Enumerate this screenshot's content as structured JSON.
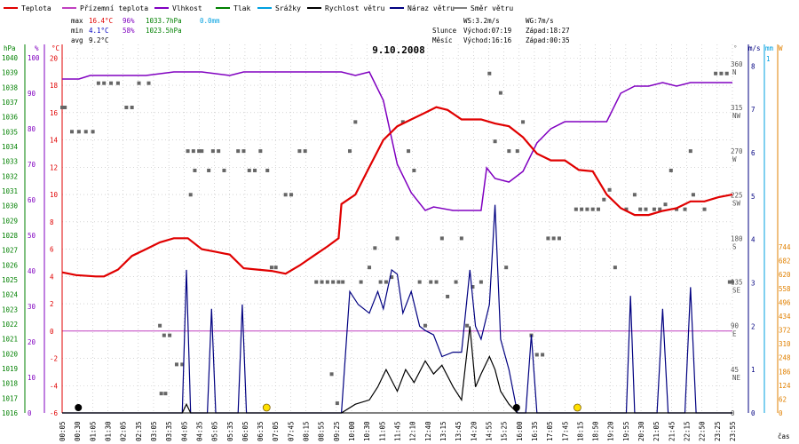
{
  "chart_data": {
    "type": "line",
    "title": "9.10.2008",
    "xlabel": "čas",
    "legend": [
      {
        "name": "Teplota",
        "color": "#e00000"
      },
      {
        "name": "Přízemní teplota",
        "color": "#c040c0"
      },
      {
        "name": "Vlhkost",
        "color": "#8000c0"
      },
      {
        "name": "Tlak",
        "color": "#008000"
      },
      {
        "name": "Srážky",
        "color": "#00a0e0"
      },
      {
        "name": "Rychlost větru",
        "color": "#000000"
      },
      {
        "name": "Náraz větru",
        "color": "#000080"
      },
      {
        "name": "Směr větru",
        "color": "#808080"
      }
    ],
    "stats": {
      "max_label": "max",
      "min_label": "min",
      "avg_label": "avg",
      "max_temp": "16.4°C",
      "max_hum": "96%",
      "max_press": "1033.7hPa",
      "max_rain": "0.0mm",
      "min_temp": "4.1°C",
      "min_hum": "58%",
      "min_press": "1023.5hPa",
      "avg_temp": "9.2°C"
    },
    "info": {
      "ws": "WS:3.2m/s",
      "wg": "WG:7m/s",
      "sun_label": "Slunce",
      "sun_rise": "Východ:07:19",
      "sun_set": "Západ:18:27",
      "moon_label": "Měsíc",
      "moon_rise": "Východ:16:16",
      "moon_set": "Západ:00:35"
    },
    "axis_units": {
      "hpa": "hPa",
      "pct": "%",
      "degc": "°C",
      "dir": "°",
      "ms": "m/s",
      "mm": "mm",
      "w": "W"
    },
    "x_ticks": [
      "00:05",
      "00:30",
      "01:05",
      "01:30",
      "02:05",
      "02:35",
      "03:05",
      "03:35",
      "04:05",
      "04:35",
      "05:05",
      "05:35",
      "06:05",
      "06:35",
      "07:05",
      "07:45",
      "08:15",
      "08:55",
      "09:25",
      "10:00",
      "10:30",
      "11:05",
      "11:45",
      "12:10",
      "12:40",
      "13:15",
      "13:45",
      "14:20",
      "14:55",
      "15:25",
      "16:00",
      "16:35",
      "17:05",
      "17:45",
      "18:15",
      "18:50",
      "19:20",
      "19:55",
      "20:30",
      "21:05",
      "21:45",
      "22:15",
      "22:50",
      "23:25",
      "23:55"
    ],
    "pressure_ticks": [
      "1040",
      "1039",
      "1038",
      "1037",
      "1036",
      "1035",
      "1034",
      "1033",
      "1032",
      "1031",
      "1030",
      "1029",
      "1028",
      "1027",
      "1026",
      "1025",
      "1024",
      "1023",
      "1022",
      "1021",
      "1020",
      "1019",
      "1018",
      "1017",
      "1016"
    ],
    "humidity_ticks": [
      "100",
      "90",
      "80",
      "70",
      "60",
      "50",
      "40",
      "30",
      "20",
      "10",
      "0"
    ],
    "temp_ticks": [
      "20",
      "18",
      "16",
      "14",
      "12",
      "10",
      "8",
      "6",
      "4",
      "2",
      "0",
      "-2",
      "-4",
      "-6"
    ],
    "dir_ticks": [
      {
        "deg": "360",
        "dir": "N"
      },
      {
        "deg": "315",
        "dir": "NW"
      },
      {
        "deg": "270",
        "dir": "W"
      },
      {
        "deg": "225",
        "dir": "SW"
      },
      {
        "deg": "180",
        "dir": "S"
      },
      {
        "deg": "135",
        "dir": "SE"
      },
      {
        "deg": "90",
        "dir": "E"
      },
      {
        "deg": "45",
        "dir": "NE"
      },
      {
        "deg": "0",
        "dir": ""
      }
    ],
    "ms_ticks": [
      "8",
      "7",
      "6",
      "5",
      "4",
      "3",
      "2",
      "1",
      "0"
    ],
    "mm_ticks": [
      "1"
    ],
    "w_ticks": [
      "744",
      "682",
      "620",
      "558",
      "496",
      "434",
      "372",
      "310",
      "248",
      "186",
      "124",
      "62",
      "0"
    ],
    "x_range_h": [
      0,
      24
    ],
    "temp_range": [
      -6,
      21
    ],
    "ms_range": [
      0,
      8.5
    ],
    "dir_range": [
      0,
      380
    ],
    "series": [
      {
        "name": "Teplota",
        "unit": "°C",
        "points": [
          [
            0,
            4.3
          ],
          [
            0.5,
            4.1
          ],
          [
            1.2,
            4.0
          ],
          [
            1.5,
            4.0
          ],
          [
            2,
            4.5
          ],
          [
            2.5,
            5.5
          ],
          [
            3,
            6.0
          ],
          [
            3.5,
            6.5
          ],
          [
            4,
            6.8
          ],
          [
            4.5,
            6.8
          ],
          [
            5,
            6.0
          ],
          [
            5.5,
            5.8
          ],
          [
            6,
            5.6
          ],
          [
            6.5,
            4.6
          ],
          [
            7,
            4.5
          ],
          [
            7.5,
            4.4
          ],
          [
            8,
            4.2
          ],
          [
            8.5,
            4.8
          ],
          [
            9,
            5.5
          ],
          [
            9.5,
            6.2
          ],
          [
            9.9,
            6.8
          ],
          [
            10,
            9.3
          ],
          [
            10.5,
            10.0
          ],
          [
            11,
            12.0
          ],
          [
            11.5,
            14.0
          ],
          [
            12,
            15.0
          ],
          [
            12.5,
            15.5
          ],
          [
            13,
            16.0
          ],
          [
            13.4,
            16.4
          ],
          [
            13.8,
            16.2
          ],
          [
            14.3,
            15.5
          ],
          [
            15,
            15.5
          ],
          [
            15.5,
            15.2
          ],
          [
            16,
            15.0
          ],
          [
            16.5,
            14.2
          ],
          [
            17,
            13.0
          ],
          [
            17.5,
            12.5
          ],
          [
            18,
            12.5
          ],
          [
            18.5,
            11.8
          ],
          [
            19,
            11.7
          ],
          [
            19.5,
            10.0
          ],
          [
            20,
            9.0
          ],
          [
            20.5,
            8.5
          ],
          [
            21,
            8.5
          ],
          [
            21.5,
            8.8
          ],
          [
            22,
            9.0
          ],
          [
            22.5,
            9.5
          ],
          [
            23,
            9.5
          ],
          [
            23.5,
            9.8
          ],
          [
            24,
            10.0
          ]
        ]
      },
      {
        "name": "Vlhkost",
        "unit": "%",
        "points": [
          [
            0,
            94
          ],
          [
            0.6,
            94
          ],
          [
            1,
            95
          ],
          [
            2,
            95
          ],
          [
            3,
            95
          ],
          [
            4,
            96
          ],
          [
            5,
            96
          ],
          [
            6,
            95
          ],
          [
            6.5,
            96
          ],
          [
            7,
            96
          ],
          [
            8,
            96
          ],
          [
            9,
            96
          ],
          [
            10,
            96
          ],
          [
            10.5,
            95
          ],
          [
            11,
            96
          ],
          [
            11.5,
            88
          ],
          [
            12,
            70
          ],
          [
            12.5,
            62
          ],
          [
            13,
            57
          ],
          [
            13.3,
            58
          ],
          [
            14,
            57
          ],
          [
            14.5,
            57
          ],
          [
            15,
            57
          ],
          [
            15.2,
            69
          ],
          [
            15.5,
            66
          ],
          [
            16,
            65
          ],
          [
            16.5,
            68
          ],
          [
            17,
            76
          ],
          [
            17.5,
            80
          ],
          [
            18,
            82
          ],
          [
            18.5,
            82
          ],
          [
            19,
            82
          ],
          [
            19.5,
            82
          ],
          [
            20,
            90
          ],
          [
            20.5,
            92
          ],
          [
            21,
            92
          ],
          [
            21.5,
            93
          ],
          [
            22,
            92
          ],
          [
            22.5,
            93
          ],
          [
            23,
            93
          ],
          [
            24,
            93
          ]
        ]
      },
      {
        "name": "Náraz větru",
        "unit": "m/s",
        "points": [
          [
            0,
            0
          ],
          [
            4,
            0
          ],
          [
            4.3,
            0
          ],
          [
            4.45,
            3.3
          ],
          [
            4.6,
            0
          ],
          [
            5.2,
            0
          ],
          [
            5.35,
            2.4
          ],
          [
            5.5,
            0
          ],
          [
            6,
            0
          ],
          [
            6.3,
            0
          ],
          [
            6.45,
            2.5
          ],
          [
            6.6,
            0
          ],
          [
            10,
            0
          ],
          [
            10.3,
            2.8
          ],
          [
            10.6,
            2.5
          ],
          [
            11,
            2.3
          ],
          [
            11.3,
            2.8
          ],
          [
            11.5,
            2.4
          ],
          [
            11.8,
            3.3
          ],
          [
            12,
            3.2
          ],
          [
            12.2,
            2.3
          ],
          [
            12.5,
            2.8
          ],
          [
            12.8,
            2.0
          ],
          [
            13,
            1.9
          ],
          [
            13.3,
            1.8
          ],
          [
            13.6,
            1.3
          ],
          [
            14,
            1.4
          ],
          [
            14.3,
            1.4
          ],
          [
            14.6,
            3.3
          ],
          [
            14.8,
            2.0
          ],
          [
            15,
            1.7
          ],
          [
            15.3,
            2.5
          ],
          [
            15.5,
            4.8
          ],
          [
            15.7,
            1.7
          ],
          [
            16,
            1.0
          ],
          [
            16.3,
            0
          ],
          [
            16.6,
            0
          ],
          [
            16.8,
            1.8
          ],
          [
            17,
            0
          ],
          [
            20,
            0
          ],
          [
            20.2,
            0
          ],
          [
            20.35,
            2.7
          ],
          [
            20.5,
            0
          ],
          [
            21.3,
            0
          ],
          [
            21.5,
            2.4
          ],
          [
            21.7,
            0
          ],
          [
            22.3,
            0
          ],
          [
            22.5,
            2.9
          ],
          [
            22.7,
            0
          ],
          [
            24,
            0
          ]
        ]
      },
      {
        "name": "Rychlost větru",
        "unit": "m/s",
        "points": [
          [
            0,
            0
          ],
          [
            4.3,
            0
          ],
          [
            4.45,
            0.2
          ],
          [
            4.6,
            0
          ],
          [
            10,
            0
          ],
          [
            10.5,
            0.2
          ],
          [
            11,
            0.3
          ],
          [
            11.3,
            0.6
          ],
          [
            11.6,
            1.0
          ],
          [
            12,
            0.5
          ],
          [
            12.3,
            1.0
          ],
          [
            12.6,
            0.7
          ],
          [
            13,
            1.2
          ],
          [
            13.3,
            0.9
          ],
          [
            13.6,
            1.1
          ],
          [
            14,
            0.6
          ],
          [
            14.3,
            0.3
          ],
          [
            14.6,
            2.0
          ],
          [
            14.8,
            0.6
          ],
          [
            15,
            0.9
          ],
          [
            15.3,
            1.3
          ],
          [
            15.5,
            1.0
          ],
          [
            15.7,
            0.5
          ],
          [
            16,
            0.2
          ],
          [
            16.3,
            0
          ],
          [
            17,
            0
          ],
          [
            24,
            0
          ]
        ]
      },
      {
        "name": "Přízemní teplota",
        "unit": "°C",
        "points": [
          [
            0,
            0
          ],
          [
            24,
            0
          ]
        ]
      }
    ],
    "wind_direction": [
      [
        0,
        315
      ],
      [
        0.1,
        315
      ],
      [
        0.35,
        290
      ],
      [
        0.6,
        290
      ],
      [
        0.85,
        290
      ],
      [
        1.1,
        290
      ],
      [
        1.3,
        340
      ],
      [
        1.5,
        340
      ],
      [
        1.75,
        340
      ],
      [
        2,
        340
      ],
      [
        2.3,
        315
      ],
      [
        2.5,
        315
      ],
      [
        2.75,
        340
      ],
      [
        3.1,
        340
      ],
      [
        3.5,
        90
      ],
      [
        3.65,
        80
      ],
      [
        3.85,
        80
      ],
      [
        3.55,
        20
      ],
      [
        3.7,
        20
      ],
      [
        4.1,
        50
      ],
      [
        4.3,
        50
      ],
      [
        4.5,
        270
      ],
      [
        4.7,
        270
      ],
      [
        4.9,
        270
      ],
      [
        4.6,
        225
      ],
      [
        4.75,
        250
      ],
      [
        5,
        270
      ],
      [
        5.25,
        250
      ],
      [
        5.4,
        270
      ],
      [
        5.6,
        270
      ],
      [
        5.8,
        250
      ],
      [
        6.3,
        270
      ],
      [
        6.5,
        270
      ],
      [
        6.7,
        250
      ],
      [
        6.9,
        250
      ],
      [
        7.1,
        270
      ],
      [
        7.35,
        250
      ],
      [
        7.5,
        150
      ],
      [
        7.65,
        150
      ],
      [
        8,
        225
      ],
      [
        8.2,
        225
      ],
      [
        8.5,
        270
      ],
      [
        8.7,
        270
      ],
      [
        9.1,
        135
      ],
      [
        9.3,
        135
      ],
      [
        9.5,
        135
      ],
      [
        9.7,
        135
      ],
      [
        9.9,
        135
      ],
      [
        10.05,
        135
      ],
      [
        9.65,
        40
      ],
      [
        9.85,
        10
      ],
      [
        10.3,
        270
      ],
      [
        10.5,
        300
      ],
      [
        10.7,
        135
      ],
      [
        11,
        150
      ],
      [
        11.2,
        170
      ],
      [
        11.4,
        135
      ],
      [
        11.6,
        135
      ],
      [
        11.8,
        140
      ],
      [
        12,
        180
      ],
      [
        12.2,
        300
      ],
      [
        12.4,
        270
      ],
      [
        12.6,
        250
      ],
      [
        12.8,
        135
      ],
      [
        13,
        90
      ],
      [
        13.2,
        135
      ],
      [
        13.4,
        135
      ],
      [
        13.6,
        180
      ],
      [
        13.8,
        120
      ],
      [
        14.1,
        135
      ],
      [
        14.3,
        180
      ],
      [
        14.5,
        90
      ],
      [
        14.7,
        130
      ],
      [
        15.0,
        135
      ],
      [
        15.3,
        350
      ],
      [
        15.5,
        280
      ],
      [
        15.7,
        330
      ],
      [
        15.9,
        150
      ],
      [
        16,
        270
      ],
      [
        16.3,
        270
      ],
      [
        16.5,
        300
      ],
      [
        16.8,
        80
      ],
      [
        17,
        60
      ],
      [
        17.2,
        60
      ],
      [
        17.4,
        180
      ],
      [
        17.6,
        180
      ],
      [
        17.8,
        180
      ],
      [
        18.4,
        210
      ],
      [
        18.6,
        210
      ],
      [
        18.8,
        210
      ],
      [
        19.0,
        210
      ],
      [
        19.2,
        210
      ],
      [
        19.4,
        220
      ],
      [
        19.6,
        230
      ],
      [
        19.8,
        150
      ],
      [
        20.2,
        210
      ],
      [
        20.5,
        225
      ],
      [
        20.7,
        210
      ],
      [
        20.9,
        210
      ],
      [
        21.2,
        210
      ],
      [
        21.4,
        210
      ],
      [
        21.6,
        215
      ],
      [
        21.8,
        250
      ],
      [
        22.0,
        210
      ],
      [
        22.5,
        270
      ],
      [
        22.3,
        210
      ],
      [
        22.6,
        225
      ],
      [
        23.0,
        210
      ],
      [
        23.4,
        350
      ],
      [
        23.6,
        350
      ],
      [
        23.8,
        350
      ],
      [
        23.9,
        135
      ],
      [
        24,
        135
      ]
    ],
    "markers": {
      "sun": [
        7.32,
        18.45
      ],
      "moon": [
        0.58,
        16.27
      ]
    }
  }
}
